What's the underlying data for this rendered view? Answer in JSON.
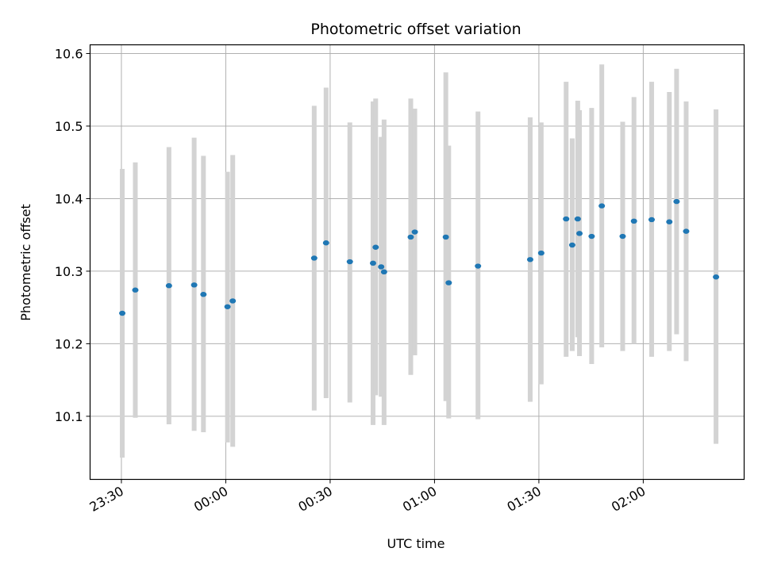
{
  "chart_data": {
    "type": "scatter",
    "title": "Photometric offset variation",
    "xlabel": "UTC time",
    "ylabel": "Photometric offset",
    "grid": true,
    "x_axis_kind": "time",
    "xlim": [
      "23:21",
      "02:29"
    ],
    "ylim": [
      10.013,
      10.612
    ],
    "x_ticks": [
      "23:30",
      "00:00",
      "00:30",
      "01:00",
      "01:30",
      "02:00"
    ],
    "y_ticks": [
      "10.1",
      "10.2",
      "10.3",
      "10.4",
      "10.5",
      "10.6"
    ],
    "series": [
      {
        "marker_color": "#1f77b4",
        "errorbar_color": "#d3d3d3",
        "points": [
          {
            "x": "23:30:15",
            "y": 10.242,
            "y_low": 10.043,
            "y_high": 10.441
          },
          {
            "x": "23:34:00",
            "y": 10.274,
            "y_low": 10.098,
            "y_high": 10.45
          },
          {
            "x": "23:43:40",
            "y": 10.28,
            "y_low": 10.089,
            "y_high": 10.471
          },
          {
            "x": "23:50:55",
            "y": 10.281,
            "y_low": 10.08,
            "y_high": 10.484
          },
          {
            "x": "23:53:35",
            "y": 10.268,
            "y_low": 10.078,
            "y_high": 10.459
          },
          {
            "x": "00:00:30",
            "y": 10.251,
            "y_low": 10.064,
            "y_high": 10.437
          },
          {
            "x": "00:02:00",
            "y": 10.259,
            "y_low": 10.058,
            "y_high": 10.46
          },
          {
            "x": "00:25:25",
            "y": 10.318,
            "y_low": 10.108,
            "y_high": 10.528
          },
          {
            "x": "00:28:50",
            "y": 10.339,
            "y_low": 10.125,
            "y_high": 10.553
          },
          {
            "x": "00:35:40",
            "y": 10.313,
            "y_low": 10.119,
            "y_high": 10.505
          },
          {
            "x": "00:42:20",
            "y": 10.311,
            "y_low": 10.088,
            "y_high": 10.534
          },
          {
            "x": "00:43:05",
            "y": 10.333,
            "y_low": 10.129,
            "y_high": 10.538
          },
          {
            "x": "00:44:40",
            "y": 10.306,
            "y_low": 10.127,
            "y_high": 10.485
          },
          {
            "x": "00:45:30",
            "y": 10.299,
            "y_low": 10.088,
            "y_high": 10.509
          },
          {
            "x": "00:53:10",
            "y": 10.347,
            "y_low": 10.157,
            "y_high": 10.538
          },
          {
            "x": "00:54:20",
            "y": 10.354,
            "y_low": 10.184,
            "y_high": 10.524
          },
          {
            "x": "01:03:15",
            "y": 10.347,
            "y_low": 10.121,
            "y_high": 10.574
          },
          {
            "x": "01:04:05",
            "y": 10.284,
            "y_low": 10.097,
            "y_high": 10.473
          },
          {
            "x": "01:12:30",
            "y": 10.307,
            "y_low": 10.096,
            "y_high": 10.52
          },
          {
            "x": "01:27:30",
            "y": 10.316,
            "y_low": 10.12,
            "y_high": 10.512
          },
          {
            "x": "01:30:40",
            "y": 10.325,
            "y_low": 10.144,
            "y_high": 10.505
          },
          {
            "x": "01:37:50",
            "y": 10.372,
            "y_low": 10.182,
            "y_high": 10.561
          },
          {
            "x": "01:39:35",
            "y": 10.336,
            "y_low": 10.19,
            "y_high": 10.483
          },
          {
            "x": "01:41:10",
            "y": 10.372,
            "y_low": 10.209,
            "y_high": 10.535
          },
          {
            "x": "01:41:40",
            "y": 10.352,
            "y_low": 10.183,
            "y_high": 10.522
          },
          {
            "x": "01:45:10",
            "y": 10.348,
            "y_low": 10.172,
            "y_high": 10.525
          },
          {
            "x": "01:48:05",
            "y": 10.39,
            "y_low": 10.195,
            "y_high": 10.585
          },
          {
            "x": "01:54:05",
            "y": 10.348,
            "y_low": 10.19,
            "y_high": 10.506
          },
          {
            "x": "01:57:20",
            "y": 10.369,
            "y_low": 10.2,
            "y_high": 10.54
          },
          {
            "x": "02:02:25",
            "y": 10.371,
            "y_low": 10.182,
            "y_high": 10.561
          },
          {
            "x": "02:07:30",
            "y": 10.368,
            "y_low": 10.19,
            "y_high": 10.547
          },
          {
            "x": "02:09:35",
            "y": 10.396,
            "y_low": 10.213,
            "y_high": 10.579
          },
          {
            "x": "02:12:20",
            "y": 10.355,
            "y_low": 10.176,
            "y_high": 10.534
          },
          {
            "x": "02:20:55",
            "y": 10.292,
            "y_low": 10.062,
            "y_high": 10.523
          }
        ]
      }
    ]
  }
}
